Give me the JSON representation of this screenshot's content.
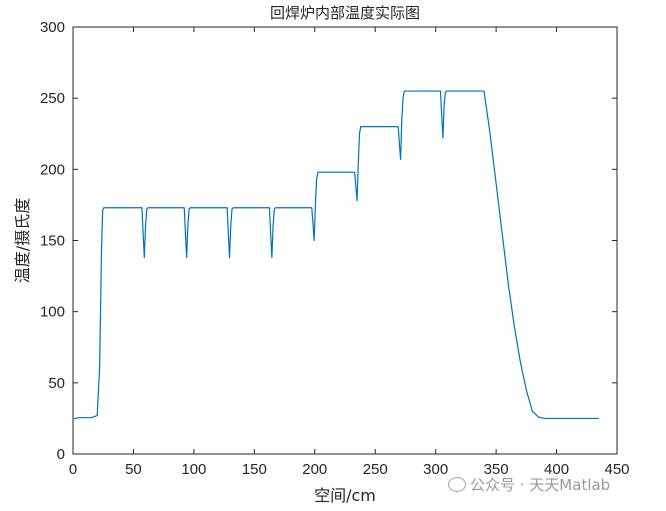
{
  "chart_data": {
    "type": "line",
    "title": "回焊炉内部温度实际图",
    "xlabel": "空间/cm",
    "ylabel": "温度/摄氏度",
    "xlim": [
      0,
      450
    ],
    "ylim": [
      0,
      300
    ],
    "xticks": [
      0,
      50,
      100,
      150,
      200,
      250,
      300,
      350,
      400,
      450
    ],
    "yticks": [
      0,
      50,
      100,
      150,
      200,
      250,
      300
    ],
    "grid": false,
    "color": "#0072BD",
    "series": [
      {
        "x": [
          0,
          2,
          5,
          10,
          15,
          20,
          22,
          23.5,
          24.5,
          25.5,
          57,
          58,
          59,
          60,
          61,
          62,
          92,
          93,
          94,
          95,
          96,
          97,
          127.5,
          128.5,
          129.5,
          130.5,
          131.5,
          132.5,
          162.5,
          163.5,
          164.5,
          165.5,
          166.5,
          167.5,
          197.5,
          198.5,
          199.5,
          200.5,
          201.5,
          202.5,
          233,
          234,
          235,
          236,
          237,
          238,
          269,
          270,
          271,
          272,
          273,
          274,
          304,
          305,
          306,
          307,
          308,
          309,
          340,
          345,
          350,
          355,
          360,
          365,
          370,
          375,
          380,
          385,
          390,
          400,
          410,
          420,
          435
        ],
        "y": [
          25,
          25,
          25.5,
          25.5,
          25.5,
          27,
          60,
          140,
          171,
          173,
          173,
          155,
          138,
          160,
          172,
          173,
          173,
          155,
          138,
          160,
          172,
          173,
          173,
          155,
          138,
          160,
          172,
          173,
          173,
          155,
          138,
          160,
          172,
          173,
          173,
          162,
          150,
          175,
          193,
          198,
          198,
          188,
          178,
          205,
          225,
          230,
          230,
          218,
          207,
          235,
          250,
          255,
          255,
          238,
          222,
          245,
          254,
          255,
          255,
          225,
          190,
          155,
          120,
          90,
          65,
          45,
          30,
          26,
          25,
          25,
          25,
          25,
          25
        ]
      }
    ]
  },
  "watermark": "公众号 · 天天Matlab"
}
